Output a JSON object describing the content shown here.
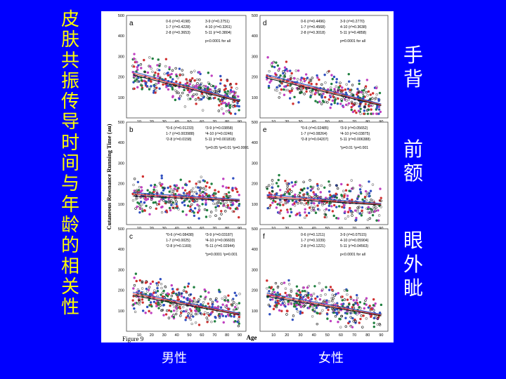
{
  "slide": {
    "title_chars": [
      "皮",
      "肤",
      "共",
      "振",
      "传",
      "导",
      "时",
      "间",
      "与",
      "年",
      "龄",
      "的",
      "相",
      "关",
      "性"
    ],
    "right_labels": [
      {
        "chars": [
          "手",
          "背"
        ]
      },
      {
        "chars": [
          "前",
          "额"
        ]
      },
      {
        "chars": [
          "眼",
          "外",
          "眦"
        ]
      }
    ],
    "bottom_labels": {
      "male": "男性",
      "female": "女性"
    },
    "colors": {
      "background": "#0000ff",
      "title": "#ffff00",
      "labels": "#ffffff"
    }
  },
  "figure": {
    "caption": "Figure 9",
    "ylabel": "Cutaneous Resonance Running Time (au)",
    "xlabel": "Age",
    "xticks": [
      10,
      20,
      30,
      40,
      50,
      60,
      70,
      80,
      90
    ],
    "yticks": [
      100,
      200,
      300,
      400,
      500
    ]
  },
  "chart_data": [
    {
      "type": "scatter",
      "panel": "a",
      "xlim": [
        0,
        95
      ],
      "ylim": [
        0,
        500
      ],
      "trend": [
        [
          5,
          210
        ],
        [
          90,
          80
        ]
      ],
      "legend": [
        "0-6 (r²=0.4198)",
        "3-9 (r²=0.2751)",
        "1-7 (r²=0.4228)",
        "4-10 (r²=0.3261)",
        "2-8 (r²=0.3653)",
        "5-11 (r²=0.3804)"
      ],
      "note": "p<0.0001 for all"
    },
    {
      "type": "scatter",
      "panel": "d",
      "xlim": [
        0,
        95
      ],
      "ylim": [
        0,
        500
      ],
      "trend": [
        [
          5,
          195
        ],
        [
          90,
          60
        ]
      ],
      "legend": [
        "0-6 (r²=0.4496)",
        "3-9 (r²=0.2770)",
        "1-7 (r²=0.4568)",
        "4-10 (r²=0.3638)",
        "2-8 (r²=0.3018)",
        "5-11 (r²=0.4858)"
      ],
      "note": "p=0.0001 for all"
    },
    {
      "type": "scatter",
      "panel": "b",
      "xlim": [
        0,
        95
      ],
      "ylim": [
        0,
        500
      ],
      "trend": [
        [
          5,
          140
        ],
        [
          90,
          115
        ]
      ],
      "legend": [
        "*0-6 (r²=0.01233)",
        "²3-9 (r²=0.03858)",
        "1-7 (r²=0.003988)",
        "²4-10 (r²=0.0246)",
        "²2-8 (r²=0.0158)",
        "5-11 (r²=0.001818)"
      ],
      "note": "*p=0.05  ²p=0.01  ³p=0.0001"
    },
    {
      "type": "scatter",
      "panel": "e",
      "xlim": [
        0,
        95
      ],
      "ylim": [
        0,
        500
      ],
      "trend": [
        [
          5,
          130
        ],
        [
          90,
          95
        ]
      ],
      "legend": [
        "*0-6 (r²=0.02485)",
        "²3-9 (r²=0.05652)",
        "1-7 (r²=0.08264)",
        "²4-10 (r²=0.03875)",
        "³2-8 (r²=0.04207)",
        "5-11 (r²=0.006388)"
      ],
      "note": "*p=0.01  ²p=0.001"
    },
    {
      "type": "scatter",
      "panel": "c",
      "xlim": [
        0,
        95
      ],
      "ylim": [
        0,
        500
      ],
      "trend": [
        [
          5,
          175
        ],
        [
          90,
          80
        ]
      ],
      "legend": [
        "*0-6 (r²=0.08438)",
        "²3-9 (r²=0.03187)",
        "1-7 (r²=0.0025)",
        "³4-10 (r²=0.06603)",
        "²2-8 (r²=0.1169)",
        "³5-11 (r²=0.02944)"
      ],
      "note": "*p=0.0001  ²p=0.001"
    },
    {
      "type": "scatter",
      "panel": "f",
      "xlim": [
        0,
        95
      ],
      "ylim": [
        0,
        500
      ],
      "trend": [
        [
          5,
          170
        ],
        [
          90,
          75
        ]
      ],
      "legend": [
        "0-6 (r²=0.1211)",
        "3-9 (r²=0.07515)",
        "1-7 (r²=0.1039)",
        "4-10 (r²=0.05904)",
        "2-8 (r²=0.1221)",
        "5-11 (r²=0.04563)"
      ],
      "note": "p<0.0001 for all"
    }
  ]
}
